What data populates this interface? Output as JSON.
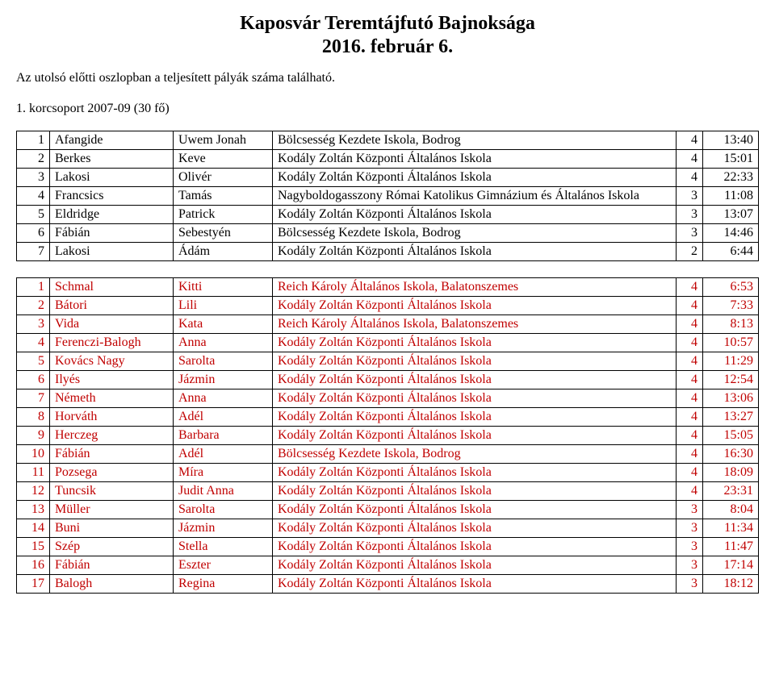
{
  "title_line1": "Kaposvár Teremtájfutó Bajnoksága",
  "title_line2": "2016. február 6.",
  "note": "Az utolsó előtti oszlopban a teljesített pályák száma található.",
  "group_title": "1. korcsoport 2007-09 (30 fő)",
  "table1": {
    "row_color": "#000000",
    "rows": [
      {
        "rank": "1",
        "last": "Afangide",
        "first": "Uwem Jonah",
        "school": "Bölcsesség Kezdete Iskola, Bodrog",
        "n": "4",
        "time": "13:40"
      },
      {
        "rank": "2",
        "last": "Berkes",
        "first": "Keve",
        "school": "Kodály Zoltán Központi Általános Iskola",
        "n": "4",
        "time": "15:01"
      },
      {
        "rank": "3",
        "last": "Lakosi",
        "first": "Olivér",
        "school": "Kodály Zoltán Központi Általános Iskola",
        "n": "4",
        "time": "22:33"
      },
      {
        "rank": "4",
        "last": "Francsics",
        "first": "Tamás",
        "school": "Nagyboldogasszony Római Katolikus Gimnázium és Általános Iskola",
        "n": "3",
        "time": "11:08"
      },
      {
        "rank": "5",
        "last": "Eldridge",
        "first": "Patrick",
        "school": "Kodály Zoltán Központi Általános Iskola",
        "n": "3",
        "time": "13:07"
      },
      {
        "rank": "6",
        "last": "Fábián",
        "first": "Sebestyén",
        "school": "Bölcsesség Kezdete Iskola, Bodrog",
        "n": "3",
        "time": "14:46"
      },
      {
        "rank": "7",
        "last": "Lakosi",
        "first": "Ádám",
        "school": "Kodály Zoltán Központi Általános Iskola",
        "n": "2",
        "time": "6:44"
      }
    ]
  },
  "table2": {
    "row_color": "#c00000",
    "rows": [
      {
        "rank": "1",
        "last": "Schmal",
        "first": "Kitti",
        "school": "Reich Károly Általános Iskola, Balatonszemes",
        "n": "4",
        "time": "6:53"
      },
      {
        "rank": "2",
        "last": "Bátori",
        "first": "Lili",
        "school": "Kodály Zoltán Központi Általános Iskola",
        "n": "4",
        "time": "7:33"
      },
      {
        "rank": "3",
        "last": "Vida",
        "first": "Kata",
        "school": "Reich Károly Általános Iskola, Balatonszemes",
        "n": "4",
        "time": "8:13"
      },
      {
        "rank": "4",
        "last": "Ferenczi-Balogh",
        "first": "Anna",
        "school": "Kodály Zoltán Központi Általános Iskola",
        "n": "4",
        "time": "10:57"
      },
      {
        "rank": "5",
        "last": "Kovács Nagy",
        "first": "Sarolta",
        "school": "Kodály Zoltán Központi Általános Iskola",
        "n": "4",
        "time": "11:29"
      },
      {
        "rank": "6",
        "last": "Ilyés",
        "first": "Jázmin",
        "school": "Kodály Zoltán Központi Általános Iskola",
        "n": "4",
        "time": "12:54"
      },
      {
        "rank": "7",
        "last": "Németh",
        "first": "Anna",
        "school": "Kodály Zoltán Központi Általános Iskola",
        "n": "4",
        "time": "13:06"
      },
      {
        "rank": "8",
        "last": "Horváth",
        "first": "Adél",
        "school": "Kodály Zoltán Központi Általános Iskola",
        "n": "4",
        "time": "13:27"
      },
      {
        "rank": "9",
        "last": "Herczeg",
        "first": "Barbara",
        "school": "Kodály Zoltán Központi Általános Iskola",
        "n": "4",
        "time": "15:05"
      },
      {
        "rank": "10",
        "last": "Fábián",
        "first": "Adél",
        "school": "Bölcsesség Kezdete Iskola, Bodrog",
        "n": "4",
        "time": "16:30"
      },
      {
        "rank": "11",
        "last": "Pozsega",
        "first": "Míra",
        "school": "Kodály Zoltán Központi Általános Iskola",
        "n": "4",
        "time": "18:09"
      },
      {
        "rank": "12",
        "last": "Tuncsik",
        "first": "Judit Anna",
        "school": "Kodály Zoltán Központi Általános Iskola",
        "n": "4",
        "time": "23:31"
      },
      {
        "rank": "13",
        "last": "Müller",
        "first": "Sarolta",
        "school": "Kodály Zoltán Központi Általános Iskola",
        "n": "3",
        "time": "8:04"
      },
      {
        "rank": "14",
        "last": "Buni",
        "first": "Jázmin",
        "school": "Kodály Zoltán Központi Általános Iskola",
        "n": "3",
        "time": "11:34"
      },
      {
        "rank": "15",
        "last": "Szép",
        "first": "Stella",
        "school": "Kodály Zoltán Központi Általános Iskola",
        "n": "3",
        "time": "11:47"
      },
      {
        "rank": "16",
        "last": "Fábián",
        "first": "Eszter",
        "school": "Kodály Zoltán Központi Általános Iskola",
        "n": "3",
        "time": "17:14"
      },
      {
        "rank": "17",
        "last": "Balogh",
        "first": "Regina",
        "school": "Kodály Zoltán Központi Általános Iskola",
        "n": "3",
        "time": "18:12"
      }
    ]
  }
}
